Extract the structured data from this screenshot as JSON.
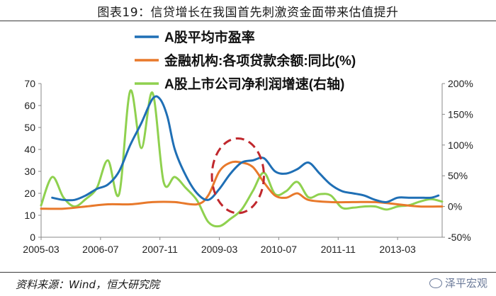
{
  "header": {
    "title": "图表19：信贷增长在我国首先刺激资金面带来估值提升"
  },
  "footer": {
    "source": "资料来源：Wind，恒大研究院",
    "watermark": "泽平宏观",
    "watermark_icon": "wechat-icon"
  },
  "chart_data": {
    "type": "line",
    "x_ticks": [
      "2005-03",
      "2006-07",
      "2007-11",
      "2009-03",
      "2010-07",
      "2011-11",
      "2013-03"
    ],
    "x_range": [
      "2005-03",
      "2014-03"
    ],
    "y_left": {
      "range": [
        0,
        70
      ],
      "ticks": [
        "0",
        "10",
        "20",
        "30",
        "40",
        "50",
        "60",
        "70"
      ]
    },
    "y_right": {
      "range": [
        -50,
        200
      ],
      "ticks": [
        "-50%",
        "0%",
        "50%",
        "100%",
        "150%",
        "200%"
      ]
    },
    "grid": false,
    "legend_position": "top",
    "series": [
      {
        "name": "A股平均市盈率",
        "axis": "left",
        "color": "#1f6fb5",
        "x": [
          "2005-06",
          "2005-09",
          "2005-12",
          "2006-03",
          "2006-06",
          "2006-09",
          "2006-12",
          "2007-03",
          "2007-06",
          "2007-09",
          "2007-11",
          "2008-01",
          "2008-03",
          "2008-06",
          "2008-09",
          "2008-12",
          "2009-03",
          "2009-06",
          "2009-09",
          "2009-12",
          "2010-03",
          "2010-06",
          "2010-09",
          "2010-12",
          "2011-03",
          "2011-06",
          "2011-09",
          "2011-12",
          "2012-03",
          "2012-06",
          "2012-09",
          "2012-12",
          "2013-03",
          "2013-06",
          "2013-09",
          "2013-12",
          "2014-02"
        ],
        "y": [
          18,
          17,
          17,
          19,
          22,
          24,
          30,
          42,
          52,
          63,
          63,
          55,
          40,
          28,
          20,
          17,
          22,
          29,
          34,
          35,
          36,
          30,
          29,
          31,
          34,
          29,
          24,
          21,
          20,
          19,
          17,
          16,
          18,
          18,
          18,
          18,
          19
        ]
      },
      {
        "name": "金融机构:各项贷款余额:同比(%)",
        "axis": "left",
        "color": "#e8792b",
        "x": [
          "2005-03",
          "2005-09",
          "2006-03",
          "2006-09",
          "2007-03",
          "2007-09",
          "2008-03",
          "2008-09",
          "2008-12",
          "2009-03",
          "2009-06",
          "2009-09",
          "2009-12",
          "2010-03",
          "2010-06",
          "2010-09",
          "2010-12",
          "2011-03",
          "2011-09",
          "2012-03",
          "2012-09",
          "2013-03",
          "2013-09",
          "2014-03"
        ],
        "y": [
          13,
          13,
          14,
          15,
          15,
          16,
          16,
          15,
          19,
          30,
          34,
          34,
          32,
          25,
          19,
          18,
          20,
          17,
          16,
          16,
          16,
          15,
          14,
          14
        ]
      },
      {
        "name": "A股上市公司净利润增速(右轴)",
        "axis": "right",
        "color": "#8fd14f",
        "x": [
          "2005-03",
          "2005-06",
          "2005-09",
          "2005-12",
          "2006-03",
          "2006-06",
          "2006-09",
          "2006-12",
          "2007-03",
          "2007-06",
          "2007-09",
          "2007-12",
          "2008-03",
          "2008-06",
          "2008-09",
          "2008-12",
          "2009-03",
          "2009-06",
          "2009-09",
          "2009-12",
          "2010-03",
          "2010-06",
          "2010-09",
          "2010-12",
          "2011-03",
          "2011-06",
          "2011-09",
          "2011-12",
          "2012-03",
          "2012-06",
          "2012-09",
          "2012-12",
          "2013-03",
          "2013-06",
          "2013-09",
          "2013-12",
          "2014-03"
        ],
        "y": [
          2,
          48,
          15,
          0,
          12,
          30,
          75,
          20,
          188,
          95,
          185,
          40,
          48,
          30,
          10,
          -25,
          -32,
          -20,
          -5,
          25,
          55,
          20,
          25,
          40,
          15,
          20,
          18,
          -2,
          -2,
          0,
          0,
          -5,
          0,
          2,
          8,
          12,
          8
        ]
      }
    ],
    "annotation": {
      "type": "ellipse",
      "color": "#c0282d",
      "dashed": true,
      "center": [
        "2009-08",
        28
      ],
      "radius": [
        7,
        17
      ]
    }
  }
}
